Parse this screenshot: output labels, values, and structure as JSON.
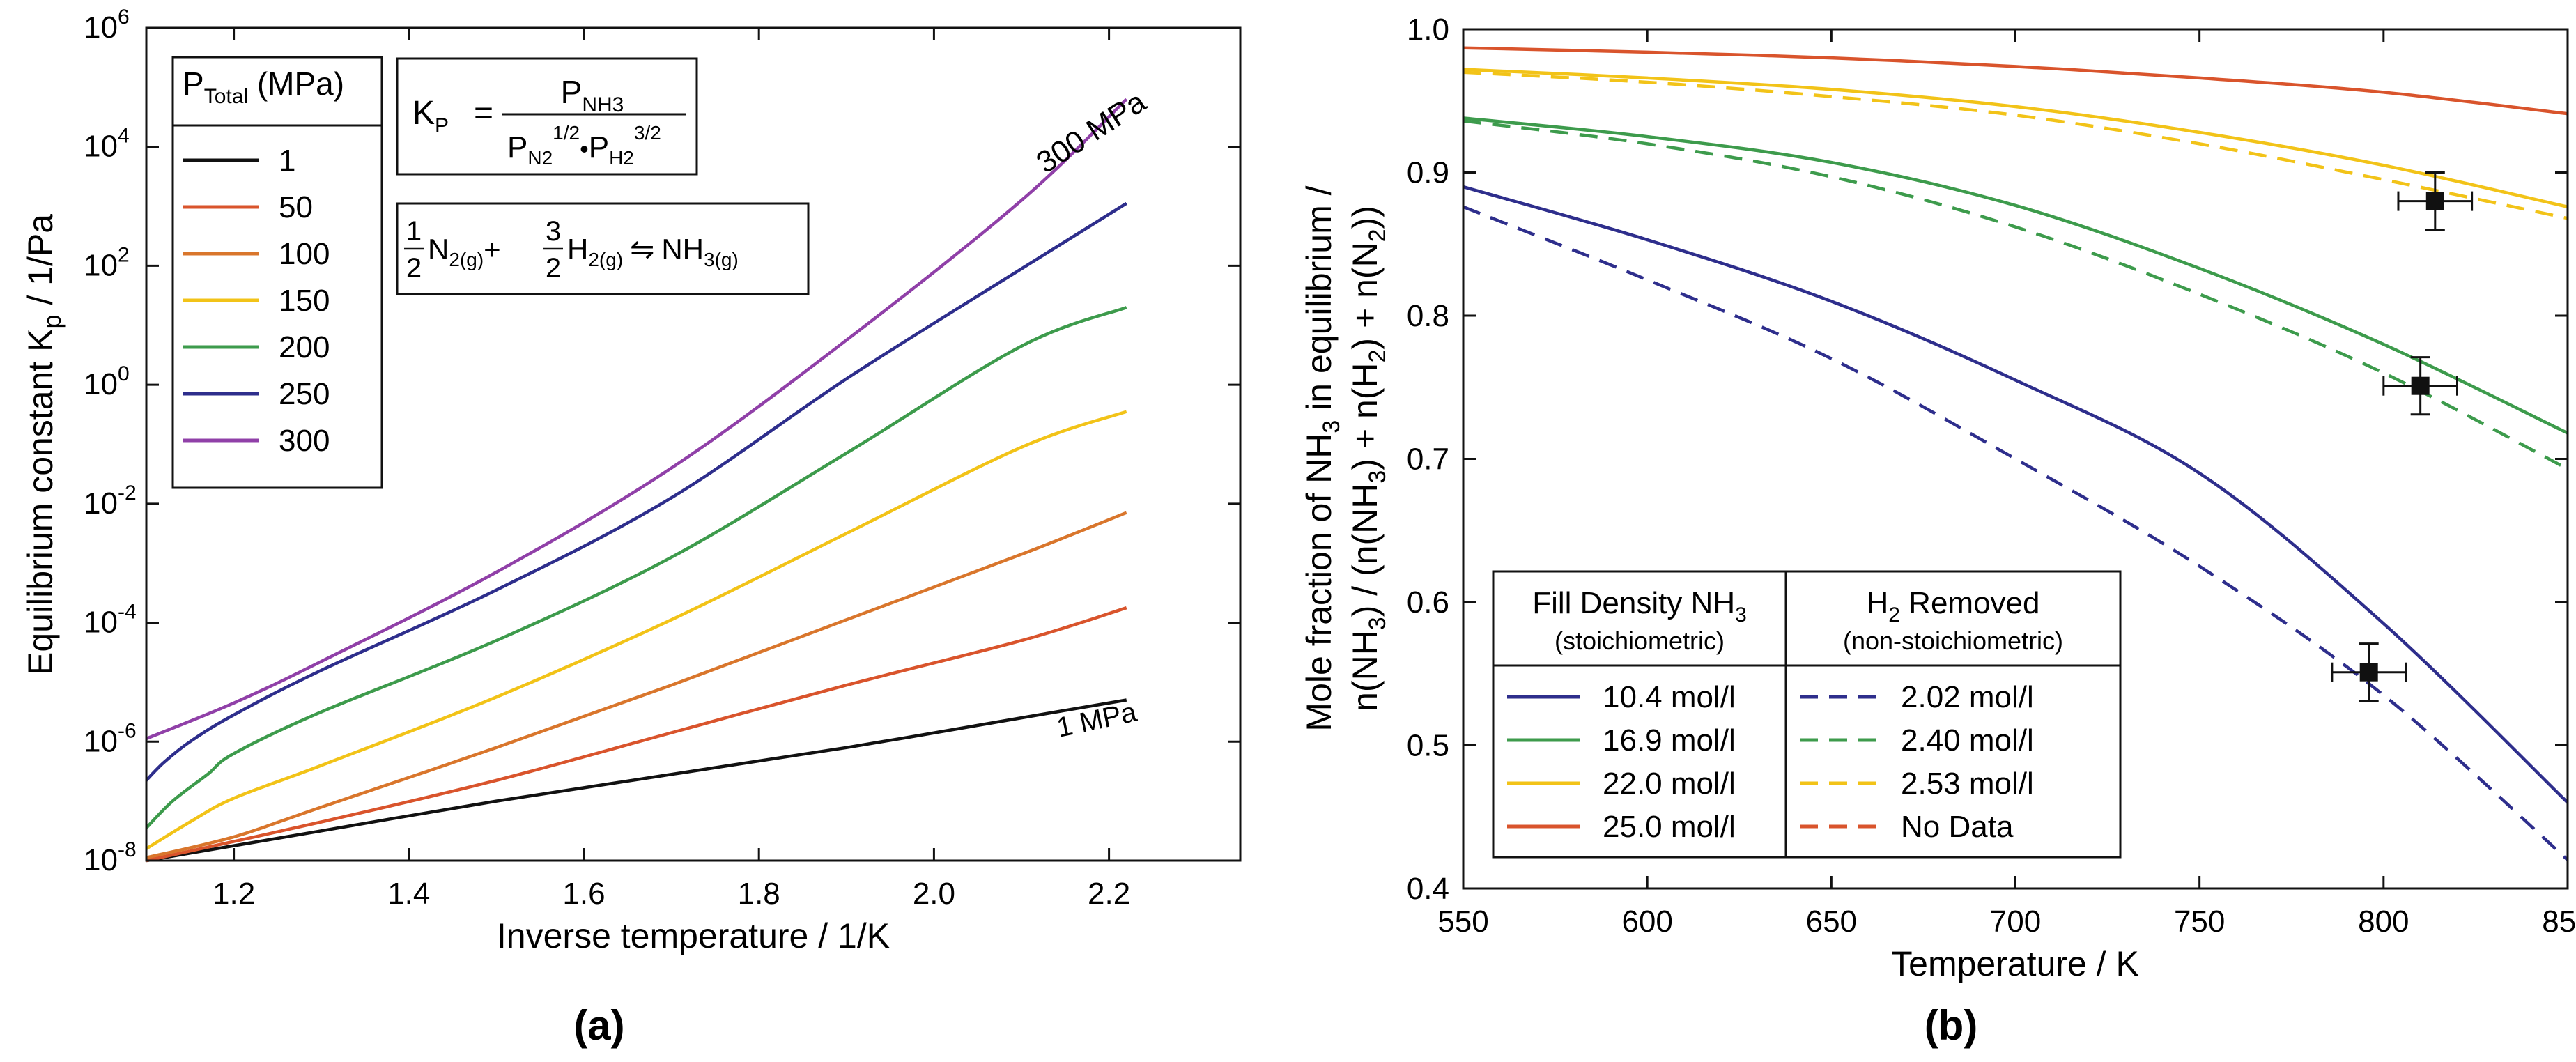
{
  "chart_data": [
    {
      "id": "a",
      "type": "line",
      "panel_label": "(a)",
      "title": "",
      "xlabel": "Inverse temperature / 1/K",
      "ylabel_main": "Equilibrium constant K",
      "ylabel_sub": "p",
      "ylabel_tail": " / 1/Pa",
      "xlim": [
        1.1,
        2.35
      ],
      "ylim_log10": [
        -8,
        6
      ],
      "yscale": "log",
      "grid": false,
      "x_ticks": [
        "1.2",
        "1.4",
        "1.6",
        "1.8",
        "2.0",
        "2.2"
      ],
      "y_ticks": [
        {
          "base": "10",
          "exp": "-8"
        },
        {
          "base": "10",
          "exp": "-6"
        },
        {
          "base": "10",
          "exp": "-4"
        },
        {
          "base": "10",
          "exp": "-2"
        },
        {
          "base": "10",
          "exp": "0"
        },
        {
          "base": "10",
          "exp": "2"
        },
        {
          "base": "10",
          "exp": "4"
        },
        {
          "base": "10",
          "exp": "6"
        }
      ],
      "legend": {
        "title_main": "P",
        "title_sub": "Total",
        "title_tail": " (MPa)",
        "position": "top-left"
      },
      "equation_kp": {
        "lhs": "K",
        "lhs_sub": "P",
        "equals": "=",
        "numerator": "P",
        "numerator_sub": "NH3",
        "den_p1": "P",
        "den_p1_sub": "N2",
        "den_p1_sup": "1/2",
        "den_dot": "•",
        "den_p2": "P",
        "den_p2_sub": "H2",
        "den_p2_sup": "3/2"
      },
      "equation_reaction": {
        "coef1_num": "1",
        "coef1_den": "2",
        "sp1": "N",
        "sp1_sub": "2(g)",
        "plus": "+",
        "coef2_num": "3",
        "coef2_den": "2",
        "sp2": "H",
        "sp2_sub": "2(g)",
        "arrow": "⇋",
        "sp3": "NH",
        "sp3_sub": "3(g)"
      },
      "annotations": [
        "300 MPa",
        "1 MPa"
      ],
      "series": [
        {
          "name": "1",
          "color": "#111111",
          "x": [
            1.1,
            1.3,
            1.5,
            1.7,
            1.9,
            2.1,
            2.22
          ],
          "log10_y": [
            -8.0,
            -7.5,
            -7.0,
            -6.55,
            -6.1,
            -5.6,
            -5.3
          ]
        },
        {
          "name": "50",
          "color": "#d9542c",
          "x": [
            1.1,
            1.3,
            1.5,
            1.7,
            1.9,
            2.1,
            2.22
          ],
          "log10_y": [
            -8.0,
            -7.35,
            -6.65,
            -5.85,
            -5.05,
            -4.3,
            -3.75
          ]
        },
        {
          "name": "100",
          "color": "#d9762c",
          "x": [
            1.1,
            1.2,
            1.3,
            1.5,
            1.7,
            1.9,
            2.1,
            2.22
          ],
          "log10_y": [
            -7.95,
            -7.6,
            -7.1,
            -6.1,
            -5.05,
            -3.95,
            -2.85,
            -2.15
          ]
        },
        {
          "name": "150",
          "color": "#f2c318",
          "x": [
            1.1,
            1.15,
            1.2,
            1.3,
            1.5,
            1.7,
            1.9,
            2.1,
            2.22
          ],
          "log10_y": [
            -7.8,
            -7.35,
            -6.95,
            -6.4,
            -5.25,
            -3.95,
            -2.5,
            -1.05,
            -0.45
          ]
        },
        {
          "name": "200",
          "color": "#3d9b4c",
          "x": [
            1.1,
            1.13,
            1.17,
            1.2,
            1.3,
            1.5,
            1.7,
            1.9,
            2.1,
            2.22
          ],
          "log10_y": [
            -7.45,
            -7.0,
            -6.55,
            -6.2,
            -5.5,
            -4.3,
            -2.9,
            -1.15,
            0.65,
            1.3
          ]
        },
        {
          "name": "250",
          "color": "#2e2e8c",
          "x": [
            1.1,
            1.12,
            1.15,
            1.2,
            1.3,
            1.5,
            1.7,
            1.9,
            2.1,
            2.22
          ],
          "log10_y": [
            -6.65,
            -6.35,
            -6.0,
            -5.55,
            -4.8,
            -3.45,
            -1.9,
            0.1,
            1.95,
            3.05
          ]
        },
        {
          "name": "300",
          "color": "#9040a8",
          "x": [
            1.1,
            1.2,
            1.3,
            1.5,
            1.7,
            1.9,
            2.1,
            2.22
          ],
          "log10_y": [
            -5.95,
            -5.35,
            -4.65,
            -3.15,
            -1.4,
            0.75,
            3.1,
            4.8
          ]
        }
      ]
    },
    {
      "id": "b",
      "type": "line",
      "panel_label": "(b)",
      "title": "",
      "xlabel": "Temperature / K",
      "ylabel_line1_a": "Mole fraction of NH",
      "ylabel_line1_sub": "3",
      "ylabel_line1_b": " in equilibrium /",
      "ylabel_line2": "n(NH3) / (n(NH3) + n(H2) + n(N2))",
      "ylabel_line2_parts": [
        "n(NH",
        "3",
        ") / (n(NH",
        "3",
        ") + n(H",
        "2",
        ") + n(N",
        "2",
        "))"
      ],
      "xlim": [
        550,
        850
      ],
      "ylim": [
        0.4,
        1.0
      ],
      "grid": false,
      "x_ticks": [
        "550",
        "600",
        "650",
        "700",
        "750",
        "800",
        "850"
      ],
      "y_ticks": [
        "0.4",
        "0.5",
        "0.6",
        "0.7",
        "0.8",
        "0.9",
        "1.0"
      ],
      "legend": {
        "position": "bottom-left",
        "col1_title_a": "Fill Density NH",
        "col1_title_sub": "3",
        "col1_subtitle": "(stoichiometric)",
        "col2_title_a": "H",
        "col2_title_sub": "2",
        "col2_title_b": " Removed",
        "col2_subtitle": "(non-stoichiometric)",
        "col1_entries": [
          "10.4 mol/l",
          "16.9 mol/l",
          "22.0 mol/l",
          "25.0 mol/l"
        ],
        "col2_entries": [
          "2.02 mol/l",
          "2.40 mol/l",
          "2.53 mol/l",
          "No Data"
        ]
      },
      "series": [
        {
          "name": "10.4 mol/l",
          "style": "solid",
          "color": "#2e2e8c",
          "x": [
            550,
            600,
            650,
            700,
            750,
            800,
            850
          ],
          "y": [
            0.89,
            0.853,
            0.81,
            0.755,
            0.69,
            0.585,
            0.46
          ]
        },
        {
          "name": "16.9 mol/l",
          "style": "solid",
          "color": "#3d9b4c",
          "x": [
            550,
            600,
            650,
            700,
            750,
            800,
            850
          ],
          "y": [
            0.938,
            0.925,
            0.907,
            0.877,
            0.833,
            0.78,
            0.718
          ]
        },
        {
          "name": "22.0 mol/l",
          "style": "solid",
          "color": "#f2c318",
          "x": [
            550,
            600,
            650,
            700,
            750,
            800,
            850
          ],
          "y": [
            0.972,
            0.966,
            0.958,
            0.946,
            0.928,
            0.905,
            0.876
          ]
        },
        {
          "name": "25.0 mol/l",
          "style": "solid",
          "color": "#d9542c",
          "x": [
            550,
            600,
            650,
            700,
            750,
            800,
            850
          ],
          "y": [
            0.987,
            0.984,
            0.98,
            0.974,
            0.966,
            0.956,
            0.941
          ]
        },
        {
          "name": "2.02 mol/l",
          "style": "dashed",
          "color": "#2e2e8c",
          "x": [
            550,
            600,
            650,
            700,
            750,
            800,
            850
          ],
          "y": [
            0.876,
            0.825,
            0.77,
            0.7,
            0.625,
            0.535,
            0.42
          ]
        },
        {
          "name": "2.40 mol/l",
          "style": "dashed",
          "color": "#3d9b4c",
          "x": [
            550,
            600,
            650,
            700,
            750,
            800,
            850
          ],
          "y": [
            0.936,
            0.92,
            0.897,
            0.862,
            0.815,
            0.76,
            0.693
          ]
        },
        {
          "name": "2.53 mol/l",
          "style": "dashed",
          "color": "#f2c318",
          "x": [
            550,
            600,
            650,
            700,
            750,
            800,
            850
          ],
          "y": [
            0.97,
            0.963,
            0.953,
            0.94,
            0.92,
            0.895,
            0.868
          ]
        }
      ],
      "measurements": [
        {
          "x": 796,
          "y": 0.551,
          "xerr": 10,
          "yerr": 0.02
        },
        {
          "x": 810,
          "y": 0.751,
          "xerr": 10,
          "yerr": 0.02
        },
        {
          "x": 814,
          "y": 0.88,
          "xerr": 10,
          "yerr": 0.02
        }
      ]
    }
  ]
}
